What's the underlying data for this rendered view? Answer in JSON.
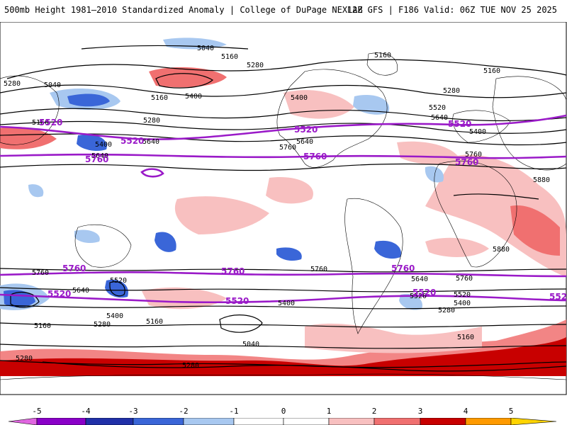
{
  "header": {
    "title_left": "500mb Height 1981–2010 Standardized Anomaly | College of DuPage NEXLAB",
    "title_right": "12Z GFS | F186 Valid: 06Z TUE NOV 25 2025"
  },
  "colors": {
    "purple_contour": "#9a1ac8",
    "black_contour": "#000000",
    "bg": "#ffffff"
  },
  "map": {
    "projection": "global cylindrical",
    "variable": "500mb Height",
    "overlay": "Standardized Anomaly",
    "contour_labels_black": [
      "5040",
      "5160",
      "5280",
      "5160",
      "5400",
      "5160",
      "5040",
      "5280",
      "5400",
      "5160",
      "5280",
      "5160",
      "5640",
      "5400",
      "5280",
      "5400",
      "5520",
      "5640",
      "5760",
      "5880",
      "5880",
      "5640",
      "5760",
      "5640",
      "5520",
      "5400",
      "5280",
      "5160",
      "5040",
      "5280",
      "5160",
      "5280",
      "5400",
      "5520",
      "5640",
      "5760",
      "5760",
      "5640",
      "5520",
      "5400",
      "5280",
      "5160",
      "5760"
    ],
    "contour_labels_purple": [
      "5520",
      "5520",
      "5520",
      "5520",
      "5760",
      "5760",
      "5760",
      "5760",
      "5760",
      "5760",
      "5520",
      "5520",
      "5520",
      "5520"
    ]
  },
  "legend": {
    "tick_labels": [
      "-5",
      "-4",
      "-3",
      "-2",
      "-1",
      "0",
      "1",
      "2",
      "3",
      "4",
      "5"
    ],
    "colors": [
      "#e066e0",
      "#8a00c8",
      "#2030a8",
      "#3a66d8",
      "#a8c8f0",
      "#ffffff",
      "#ffffff",
      "#f8c0c0",
      "#f07070",
      "#c80000",
      "#ff9a00",
      "#ffd400"
    ]
  }
}
